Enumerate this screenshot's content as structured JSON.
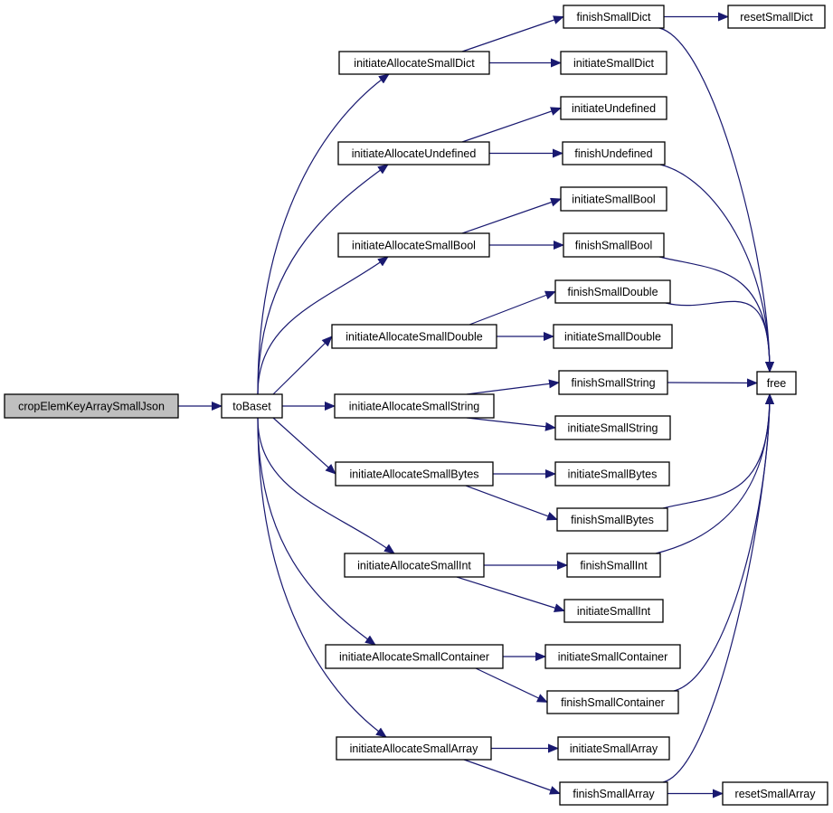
{
  "colors": {
    "edge": "#191970",
    "root_fill": "#bfbfbf",
    "node_fill": "#ffffff",
    "border": "#000000"
  },
  "nodes": [
    {
      "id": "crop",
      "label": "cropElemKeyArraySmallJson",
      "root": true
    },
    {
      "id": "toBaset",
      "label": "toBaset"
    },
    {
      "id": "iaDict",
      "label": "initiateAllocateSmallDict"
    },
    {
      "id": "iaUndef",
      "label": "initiateAllocateUndefined"
    },
    {
      "id": "iaBool",
      "label": "initiateAllocateSmallBool"
    },
    {
      "id": "iaDouble",
      "label": "initiateAllocateSmallDouble"
    },
    {
      "id": "iaString",
      "label": "initiateAllocateSmallString"
    },
    {
      "id": "iaBytes",
      "label": "initiateAllocateSmallBytes"
    },
    {
      "id": "iaInt",
      "label": "initiateAllocateSmallInt"
    },
    {
      "id": "iaCont",
      "label": "initiateAllocateSmallContainer"
    },
    {
      "id": "iaArray",
      "label": "initiateAllocateSmallArray"
    },
    {
      "id": "fDict",
      "label": "finishSmallDict"
    },
    {
      "id": "rDict",
      "label": "resetSmallDict"
    },
    {
      "id": "iDict",
      "label": "initiateSmallDict"
    },
    {
      "id": "iUndef",
      "label": "initiateUndefined"
    },
    {
      "id": "fUndef",
      "label": "finishUndefined"
    },
    {
      "id": "iBool",
      "label": "initiateSmallBool"
    },
    {
      "id": "fBool",
      "label": "finishSmallBool"
    },
    {
      "id": "fDouble",
      "label": "finishSmallDouble"
    },
    {
      "id": "iDouble",
      "label": "initiateSmallDouble"
    },
    {
      "id": "fString",
      "label": "finishSmallString"
    },
    {
      "id": "iString",
      "label": "initiateSmallString"
    },
    {
      "id": "iBytes",
      "label": "initiateSmallBytes"
    },
    {
      "id": "fBytes",
      "label": "finishSmallBytes"
    },
    {
      "id": "fInt",
      "label": "finishSmallInt"
    },
    {
      "id": "iInt",
      "label": "initiateSmallInt"
    },
    {
      "id": "iCont",
      "label": "initiateSmallContainer"
    },
    {
      "id": "fCont",
      "label": "finishSmallContainer"
    },
    {
      "id": "iArray",
      "label": "initiateSmallArray"
    },
    {
      "id": "fArray",
      "label": "finishSmallArray"
    },
    {
      "id": "rArray",
      "label": "resetSmallArray"
    },
    {
      "id": "free",
      "label": "free"
    }
  ],
  "edges": [
    [
      "crop",
      "toBaset"
    ],
    [
      "toBaset",
      "iaDict"
    ],
    [
      "toBaset",
      "iaUndef"
    ],
    [
      "toBaset",
      "iaBool"
    ],
    [
      "toBaset",
      "iaDouble"
    ],
    [
      "toBaset",
      "iaString"
    ],
    [
      "toBaset",
      "iaBytes"
    ],
    [
      "toBaset",
      "iaInt"
    ],
    [
      "toBaset",
      "iaCont"
    ],
    [
      "toBaset",
      "iaArray"
    ],
    [
      "iaDict",
      "fDict"
    ],
    [
      "iaDict",
      "iDict"
    ],
    [
      "fDict",
      "rDict"
    ],
    [
      "fDict",
      "free"
    ],
    [
      "iaUndef",
      "iUndef"
    ],
    [
      "iaUndef",
      "fUndef"
    ],
    [
      "fUndef",
      "free"
    ],
    [
      "iaBool",
      "iBool"
    ],
    [
      "iaBool",
      "fBool"
    ],
    [
      "fBool",
      "free"
    ],
    [
      "iaDouble",
      "fDouble"
    ],
    [
      "iaDouble",
      "iDouble"
    ],
    [
      "fDouble",
      "free"
    ],
    [
      "iaString",
      "fString"
    ],
    [
      "iaString",
      "iString"
    ],
    [
      "fString",
      "free"
    ],
    [
      "iaBytes",
      "iBytes"
    ],
    [
      "iaBytes",
      "fBytes"
    ],
    [
      "fBytes",
      "free"
    ],
    [
      "iaInt",
      "fInt"
    ],
    [
      "iaInt",
      "iInt"
    ],
    [
      "fInt",
      "free"
    ],
    [
      "iaCont",
      "iCont"
    ],
    [
      "iaCont",
      "fCont"
    ],
    [
      "fCont",
      "free"
    ],
    [
      "iaArray",
      "iArray"
    ],
    [
      "iaArray",
      "fArray"
    ],
    [
      "fArray",
      "rArray"
    ],
    [
      "fArray",
      "free"
    ]
  ]
}
